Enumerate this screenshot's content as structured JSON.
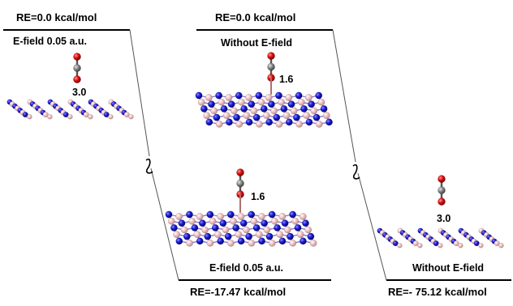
{
  "states": [
    {
      "energy": "RE=0.0 kcal/mol",
      "condition": "E-field 0.05 a.u.",
      "distance": "3.0"
    },
    {
      "energy": "RE=0.0 kcal/mol",
      "condition": "Without E-field",
      "distance": "1.6"
    },
    {
      "energy": "RE=-17.47 kcal/mol",
      "condition": "E-field 0.05 a.u.",
      "distance": "1.6"
    },
    {
      "energy": "RE=- 75.12 kcal/mol",
      "condition": "Without E-field",
      "distance": "3.0"
    }
  ],
  "colors": {
    "boron": "#f2c4c4",
    "nitrogen": "#1b1bd8",
    "oxygen": "#e01010",
    "carbon": "#8a8a8a"
  }
}
